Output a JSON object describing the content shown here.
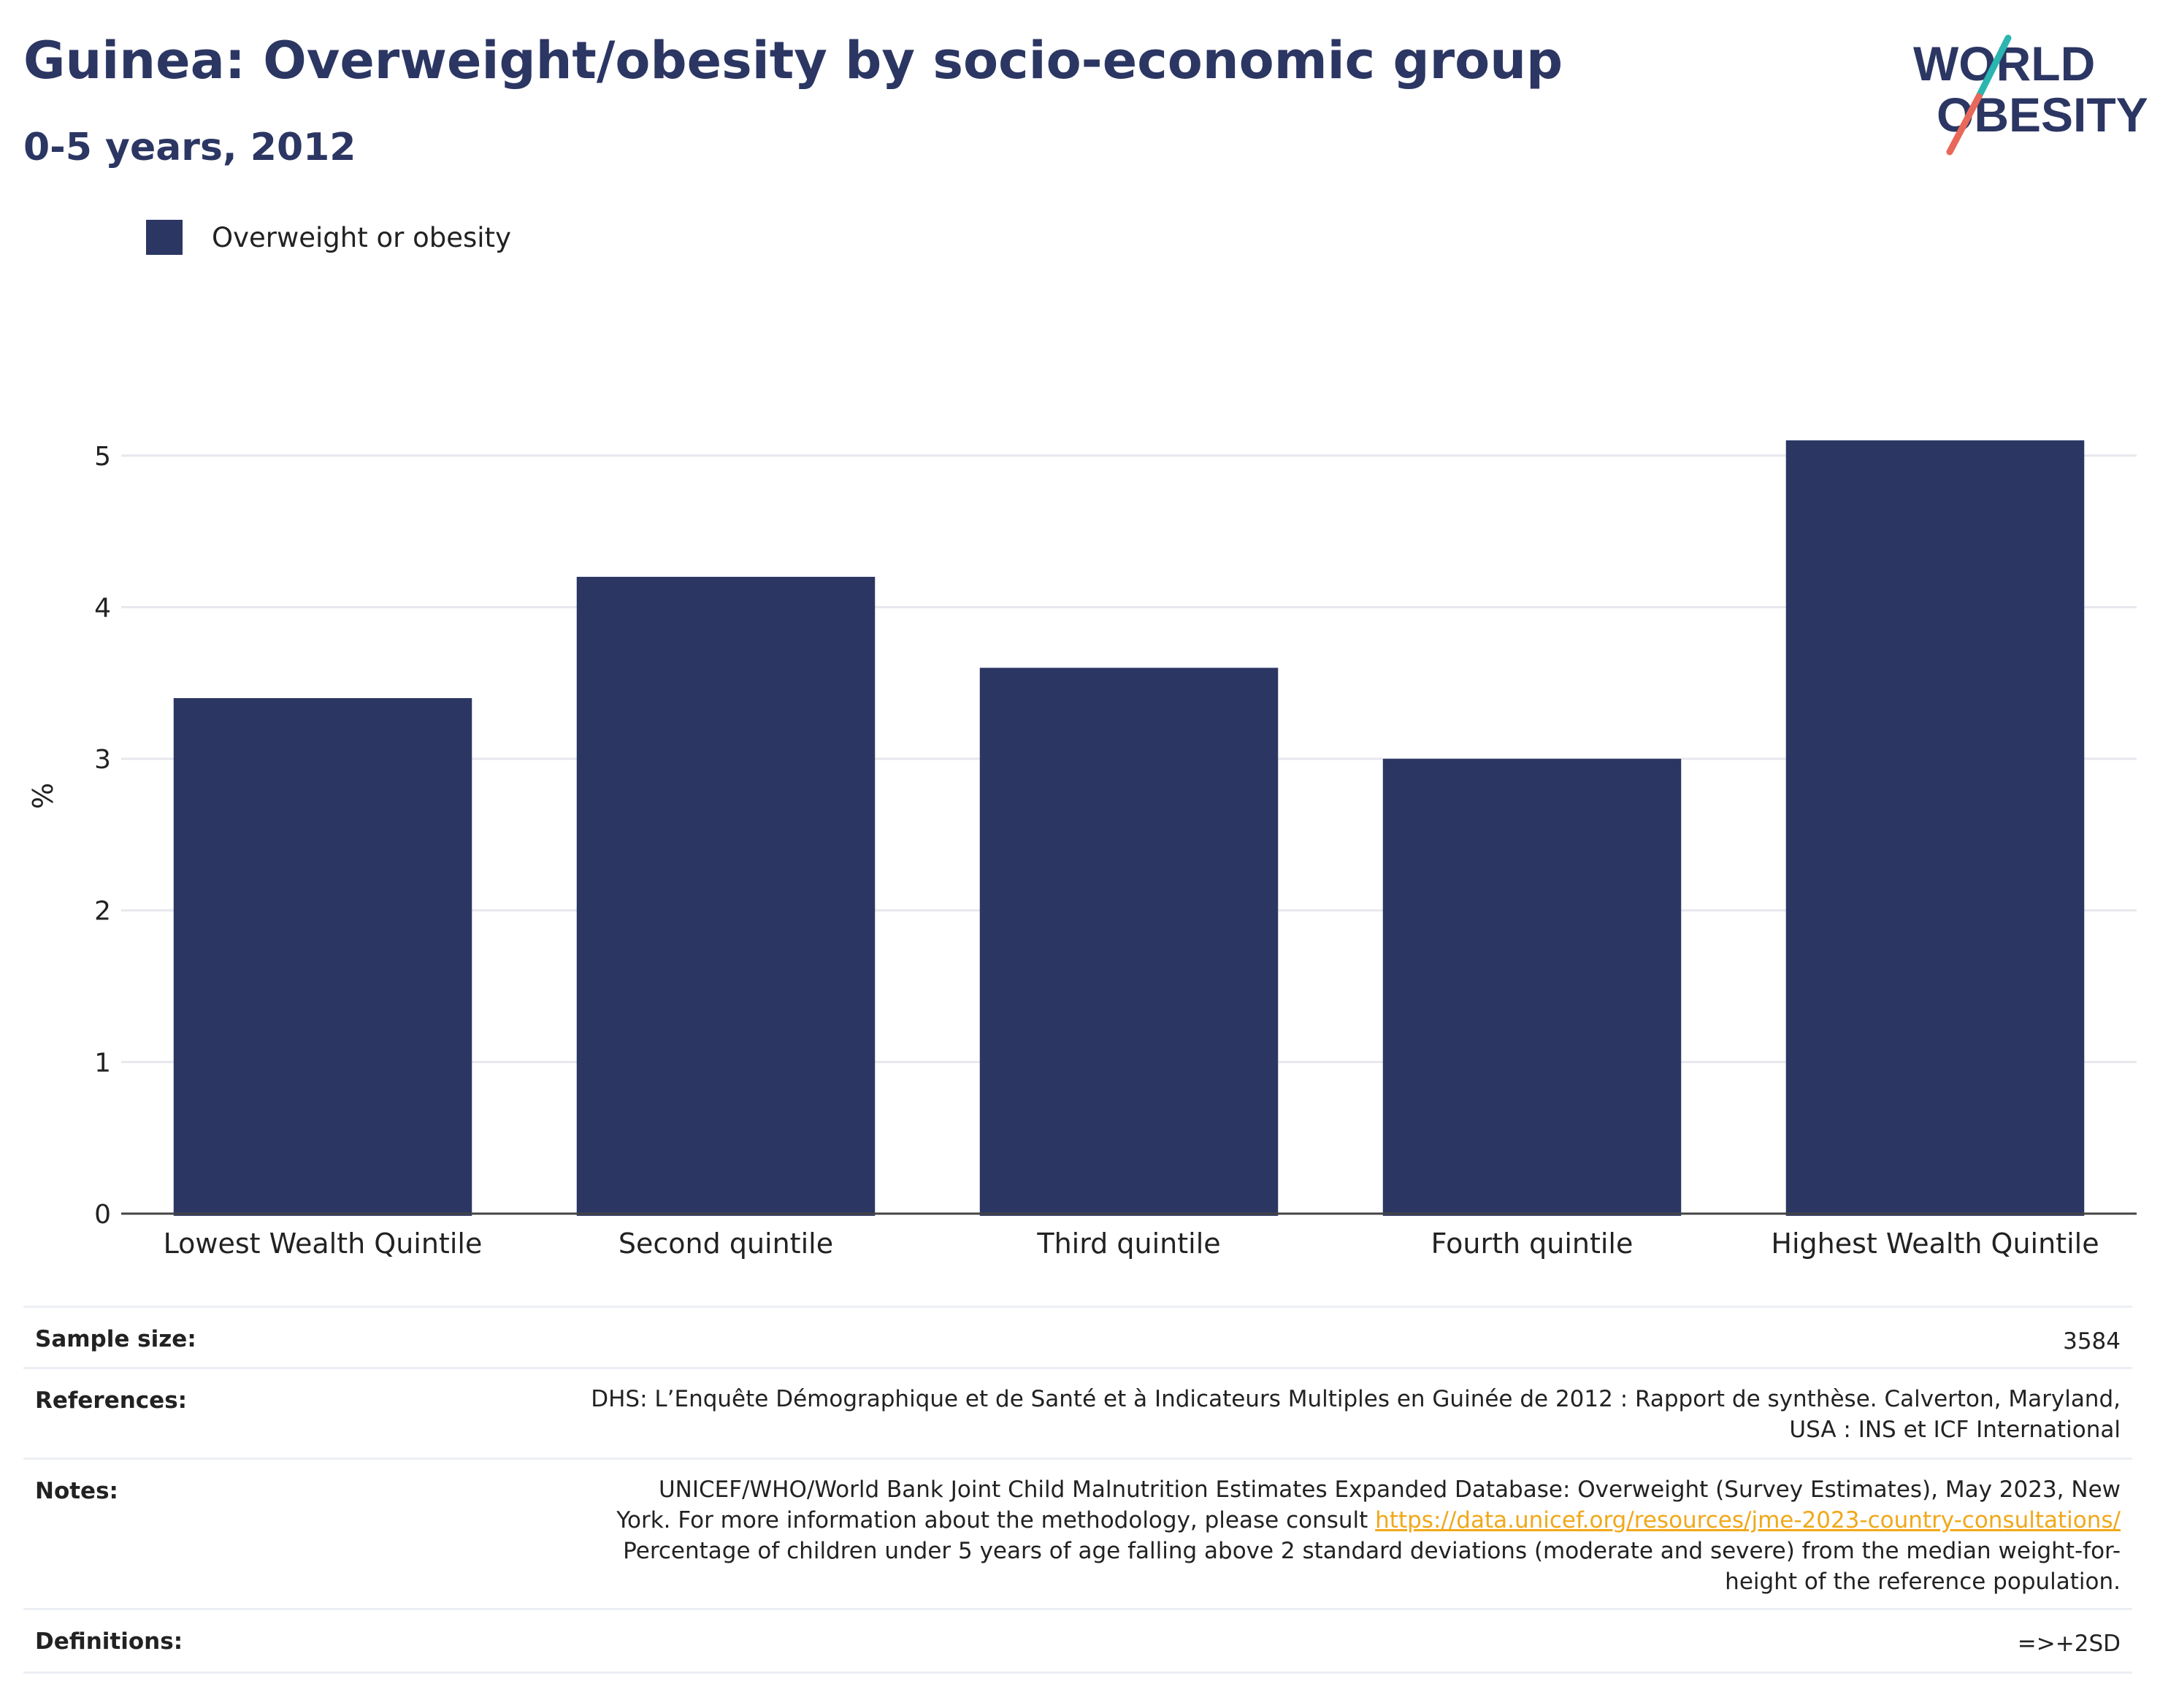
{
  "header": {
    "title": "Guinea: Overweight/obesity by socio-economic group",
    "subtitle": "0-5 years, 2012"
  },
  "logo": {
    "line1": "WORLD",
    "line2": "OBESITY",
    "accent_teal": "#2bb5b0",
    "accent_coral": "#e8685a"
  },
  "colors": {
    "bar": "#2b3663",
    "title": "#2b3663",
    "grid": "#e6e8ee",
    "axis": "#444444",
    "link": "#f0a81a"
  },
  "chart_data": {
    "type": "bar",
    "categories": [
      "Lowest Wealth Quintile",
      "Second quintile",
      "Third quintile",
      "Fourth quintile",
      "Highest Wealth Quintile"
    ],
    "series": [
      {
        "name": "Overweight or obesity",
        "values": [
          3.4,
          4.2,
          3.6,
          3.0,
          5.1
        ]
      }
    ],
    "ylabel": "%",
    "ylim": [
      0,
      5.5
    ],
    "yticks": [
      0,
      1,
      2,
      3,
      4,
      5
    ],
    "grid": true,
    "legend_position": "top-left"
  },
  "meta": {
    "sample_size": {
      "label": "Sample size:",
      "value": "3584"
    },
    "references": {
      "label": "References:",
      "line1": "DHS: L’Enquête Démographique et de Santé et à Indicateurs Multiples en Guinée de 2012 : Rapport de synthèse. Calverton, Maryland,",
      "line2": "USA : INS et ICF International"
    },
    "notes": {
      "label": "Notes:",
      "line1": "UNICEF/WHO/World Bank Joint Child Malnutrition Estimates Expanded Database: Overweight (Survey Estimates), May 2023, New",
      "line2_prefix": "York. For more information about the methodology, please consult ",
      "link": "https://data.unicef.org/resources/jme-2023-country-consultations/",
      "line3": "Percentage of children under 5 years of age falling above 2 standard deviations (moderate and severe) from the median weight-for-",
      "line4": "height of the reference population."
    },
    "definitions": {
      "label": "Definitions:",
      "value": "=>+2SD"
    }
  }
}
